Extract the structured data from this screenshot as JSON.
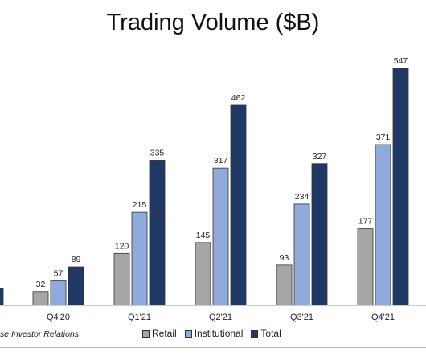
{
  "chart_data": {
    "type": "bar",
    "title": "Trading Volume ($B)",
    "xlabel": "",
    "ylabel": "",
    "categories": [
      "Q4'20",
      "Q1'21",
      "Q2'21",
      "Q3'21",
      "Q4'21"
    ],
    "series": [
      {
        "name": "Retail",
        "values": [
          32,
          120,
          145,
          93,
          177
        ],
        "color": "#a6a6a6"
      },
      {
        "name": "Institutional",
        "values": [
          57,
          215,
          317,
          234,
          371
        ],
        "color": "#8faadc"
      },
      {
        "name": "Total",
        "values": [
          89,
          335,
          462,
          327,
          547
        ],
        "color": "#1f3864"
      }
    ],
    "partial_previous_total": 39,
    "ylim": [
      0,
      590
    ],
    "grid": false,
    "legend": "bottom-center",
    "data_labels": true
  },
  "source_note": "se Investor Relations"
}
